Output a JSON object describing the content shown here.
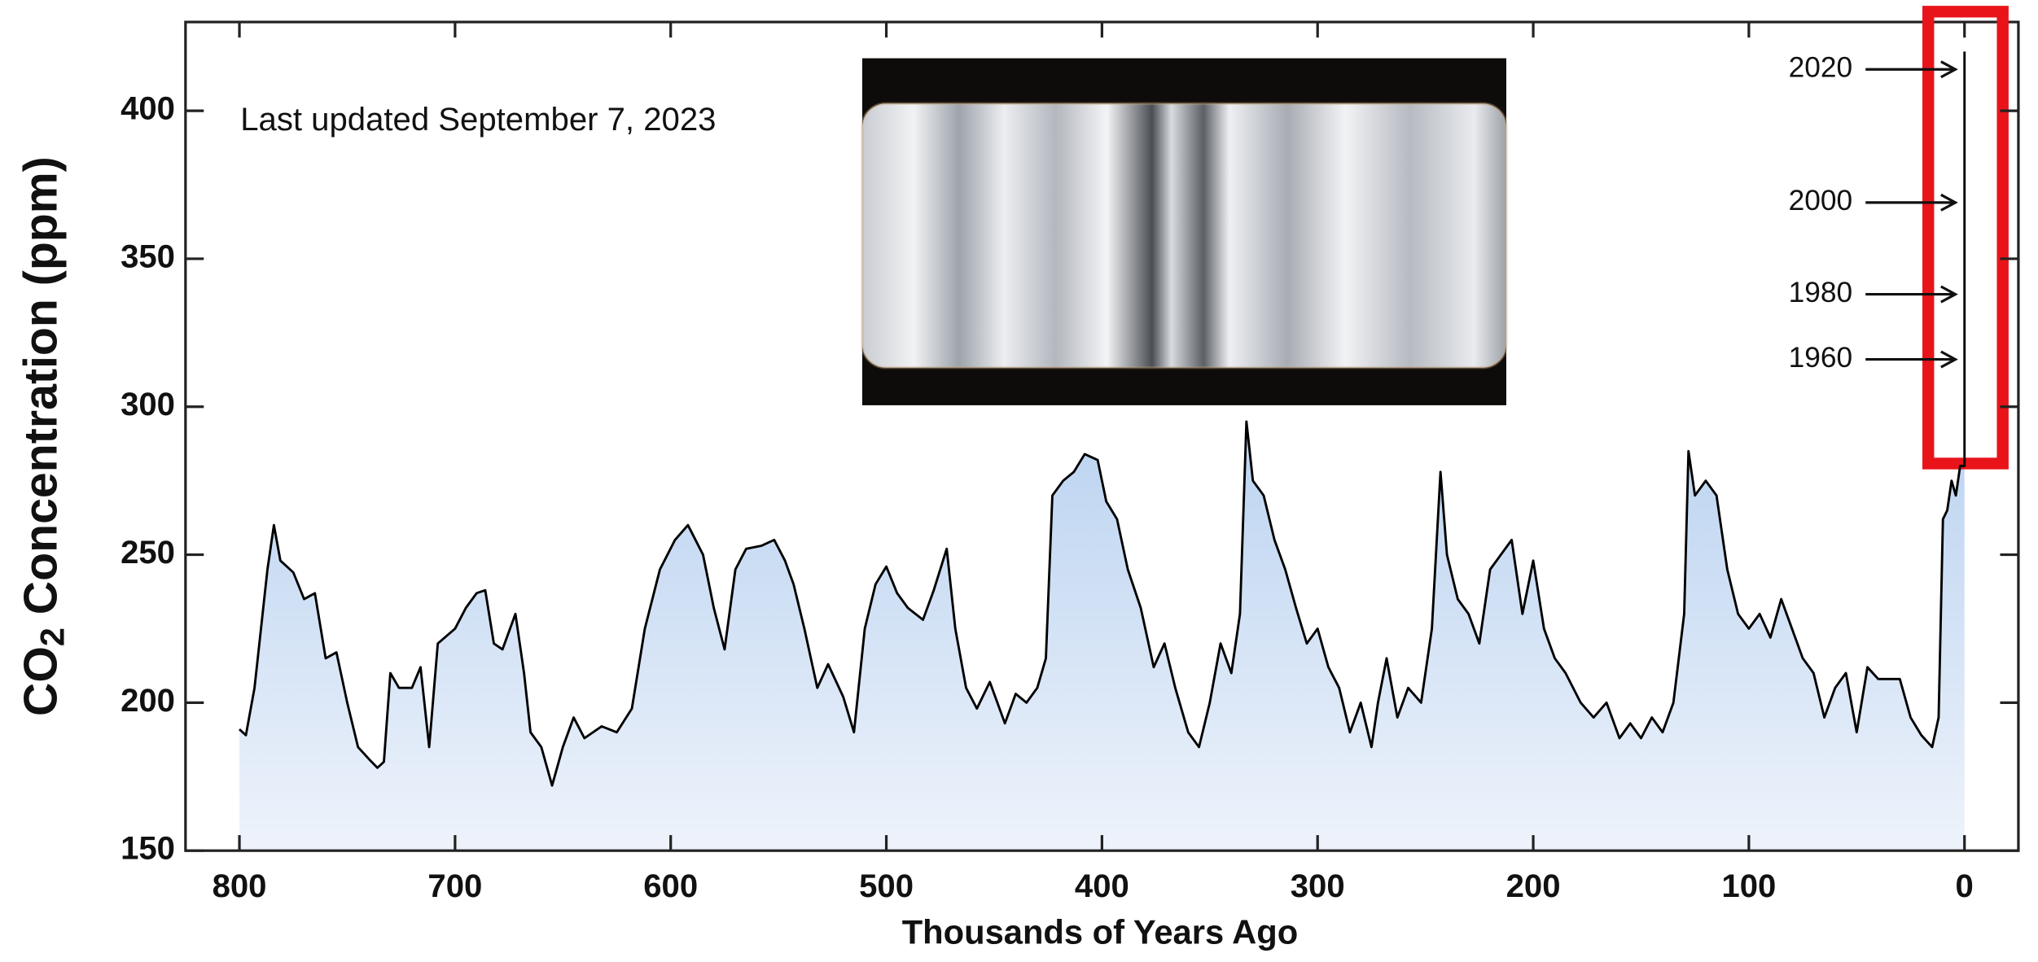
{
  "chart_data": {
    "type": "area",
    "note": "Last updated September 7, 2023",
    "xlabel": "Thousands of Years Ago",
    "ylabel": [
      "CO",
      "2",
      " Concentration (ppm)"
    ],
    "xlim": [
      825,
      -25
    ],
    "ylim": [
      150,
      430
    ],
    "xticks": [
      800,
      700,
      600,
      500,
      400,
      300,
      200,
      100,
      0
    ],
    "yticks": [
      150,
      200,
      250,
      300,
      350,
      400
    ],
    "series": [
      {
        "color": "#000000",
        "fill_top": "#b9d2f0",
        "fill_bottom": "#eef3fb",
        "x": [
          800,
          797,
          793,
          790,
          787,
          784,
          781,
          775,
          770,
          765,
          760,
          755,
          750,
          745,
          740,
          736,
          733,
          730,
          726,
          720,
          716,
          712,
          708,
          700,
          695,
          690,
          686,
          682,
          678,
          672,
          668,
          665,
          660,
          655,
          650,
          645,
          640,
          632,
          625,
          618,
          612,
          605,
          598,
          592,
          585,
          580,
          575,
          570,
          565,
          558,
          552,
          547,
          543,
          538,
          532,
          527,
          520,
          515,
          510,
          505,
          500,
          495,
          490,
          483,
          478,
          472,
          468,
          463,
          458,
          452,
          445,
          440,
          435,
          430,
          426,
          423,
          418,
          413,
          408,
          402,
          398,
          393,
          388,
          382,
          376,
          371,
          366,
          360,
          355,
          350,
          345,
          340,
          336,
          333,
          330,
          325,
          320,
          315,
          310,
          305,
          300,
          295,
          290,
          285,
          280,
          275,
          272,
          268,
          263,
          258,
          252,
          247,
          243,
          240,
          235,
          230,
          225,
          220,
          215,
          210,
          205,
          200,
          195,
          190,
          185,
          178,
          172,
          166,
          160,
          155,
          150,
          145,
          140,
          135,
          130,
          128,
          125,
          120,
          115,
          110,
          105,
          100,
          95,
          90,
          85,
          80,
          75,
          70,
          65,
          60,
          55,
          50,
          45,
          40,
          35,
          30,
          25,
          20,
          15,
          12,
          10,
          8,
          6,
          4,
          2,
          0,
          0
        ],
        "values": [
          191,
          189,
          205,
          225,
          245,
          260,
          248,
          244,
          235,
          237,
          215,
          217,
          200,
          185,
          181,
          178,
          180,
          210,
          205,
          205,
          212,
          185,
          220,
          225,
          232,
          237,
          238,
          220,
          218,
          230,
          210,
          190,
          185,
          172,
          185,
          195,
          188,
          192,
          190,
          198,
          225,
          245,
          255,
          260,
          250,
          232,
          218,
          245,
          252,
          253,
          255,
          248,
          240,
          225,
          205,
          213,
          202,
          190,
          225,
          240,
          246,
          237,
          232,
          228,
          238,
          252,
          225,
          205,
          198,
          207,
          193,
          203,
          200,
          205,
          215,
          270,
          275,
          278,
          284,
          282,
          268,
          262,
          245,
          232,
          212,
          220,
          205,
          190,
          185,
          200,
          220,
          210,
          230,
          295,
          275,
          270,
          255,
          245,
          232,
          220,
          225,
          212,
          205,
          190,
          200,
          185,
          200,
          215,
          195,
          205,
          200,
          225,
          278,
          250,
          235,
          230,
          220,
          245,
          250,
          255,
          230,
          248,
          225,
          215,
          210,
          200,
          195,
          200,
          188,
          193,
          188,
          195,
          190,
          200,
          230,
          285,
          270,
          275,
          270,
          245,
          230,
          225,
          230,
          222,
          235,
          225,
          215,
          210,
          195,
          205,
          210,
          190,
          212,
          208,
          208,
          208,
          195,
          189,
          185,
          195,
          262,
          265,
          275,
          270,
          280,
          280,
          420
        ]
      }
    ],
    "annotations": [
      {
        "label": "2020",
        "value": 414
      },
      {
        "label": "2000",
        "value": 369
      },
      {
        "label": "1980",
        "value": 338
      },
      {
        "label": "1960",
        "value": 316
      }
    ]
  }
}
